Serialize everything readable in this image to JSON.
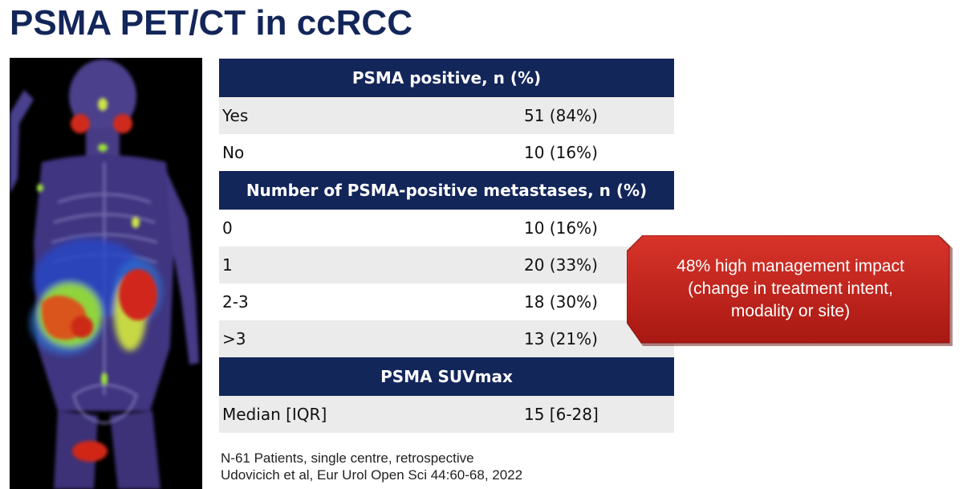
{
  "title": "PSMA PET/CT in ccRCC",
  "image": {
    "subject": "PSMA PET/CT whole-body scan"
  },
  "table": {
    "sections": [
      {
        "header": "PSMA positive, n (%)",
        "rows": [
          {
            "label": "Yes",
            "value": "51 (84%)"
          },
          {
            "label": "No",
            "value": "10 (16%)"
          }
        ]
      },
      {
        "header": "Number of PSMA-positive metastases, n (%)",
        "rows": [
          {
            "label": "0",
            "value": "10 (16%)"
          },
          {
            "label": "1",
            "value": "20 (33%)"
          },
          {
            "label": "2-3",
            "value": "18 (30%)"
          },
          {
            "label": ">3",
            "value": "13 (21%)"
          }
        ]
      },
      {
        "header": "PSMA SUVmax",
        "rows": [
          {
            "label": "Median [IQR]",
            "value": "15 [6-28]"
          }
        ]
      }
    ]
  },
  "callout": {
    "line1": "48% high management impact",
    "line2": "(change in treatment intent,",
    "line3": "modality or site)",
    "color": "#c4221c"
  },
  "footnote": {
    "line1": "N-61 Patients, single centre, retrospective",
    "line2": "Udovicich et al, Eur Urol Open Sci 44:60-68, 2022"
  },
  "colors": {
    "header_bg": "#13265a",
    "row_shade": "#ebebeb",
    "title": "#13265a"
  }
}
